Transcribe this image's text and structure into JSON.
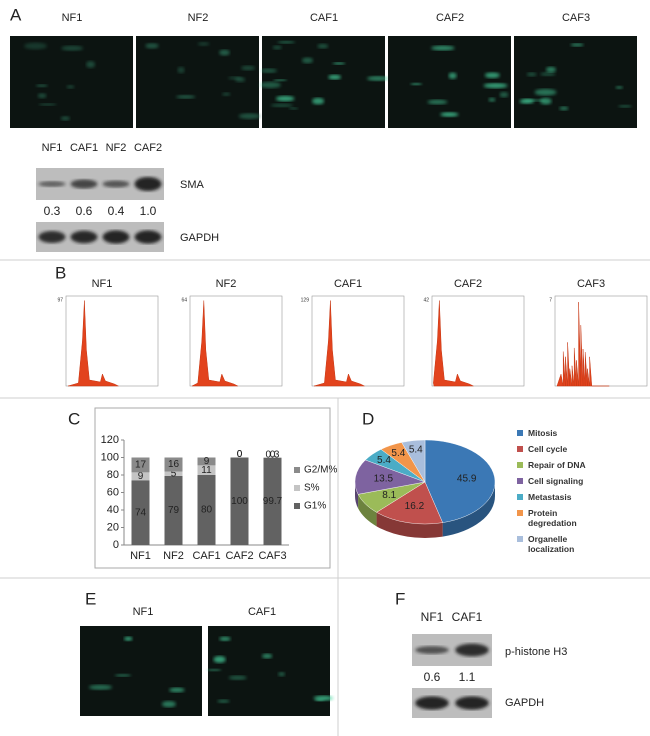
{
  "panel_a": {
    "label": "A",
    "image_labels": [
      "NF1",
      "NF2",
      "CAF1",
      "CAF2",
      "CAF3"
    ],
    "blot": {
      "lanes": [
        "NF1",
        "CAF1",
        "NF2",
        "CAF2"
      ],
      "rows": [
        {
          "name": "SMA",
          "quantities": [
            "0.3",
            "0.6",
            "0.4",
            "1.0"
          ]
        },
        {
          "name": "GAPDH"
        }
      ]
    }
  },
  "panel_b": {
    "label": "B",
    "histograms": [
      {
        "name": "NF1",
        "ymax": "97"
      },
      {
        "name": "NF2",
        "ymax": "64"
      },
      {
        "name": "CAF1",
        "ymax": "129"
      },
      {
        "name": "CAF2",
        "ymax": "42"
      },
      {
        "name": "CAF3",
        "ymax": "7"
      }
    ],
    "xmax": "1023"
  },
  "chart_data": [
    {
      "type": "bar",
      "stacked": true,
      "panel_label": "C",
      "categories": [
        "NF1",
        "NF2",
        "CAF1",
        "CAF2",
        "CAF3"
      ],
      "series": [
        {
          "name": "G2/M%",
          "color": "#8a8a8a",
          "values": [
            17,
            16,
            9,
            0,
            0.3
          ]
        },
        {
          "name": "S%",
          "color": "#c4c4c4",
          "values": [
            9,
            5,
            11,
            0,
            0
          ]
        },
        {
          "name": "G1%",
          "color": "#626262",
          "values": [
            74,
            79,
            80,
            100,
            99.7
          ]
        }
      ],
      "ylim": [
        0,
        120
      ],
      "yticks": [
        0,
        20,
        40,
        60,
        80,
        100,
        120
      ],
      "legend": "right"
    },
    {
      "type": "pie",
      "panel_label": "D",
      "categories": [
        "Mitosis",
        "Cell cycle",
        "Repair of DNA",
        "Cell signaling",
        "Metastasis",
        "Protein degredation",
        "Organelle localization"
      ],
      "values": [
        45.9,
        16.2,
        8.1,
        13.5,
        5.4,
        5.4,
        5.4
      ],
      "colors": [
        "#3b78b5",
        "#c0504d",
        "#9bbb59",
        "#7e63a0",
        "#4bacc6",
        "#f2954a",
        "#a9bedc"
      ],
      "legend": "right"
    }
  ],
  "panel_e": {
    "label": "E",
    "image_labels": [
      "NF1",
      "CAF1"
    ]
  },
  "panel_f": {
    "label": "F",
    "blot": {
      "lanes": [
        "NF1",
        "CAF1"
      ],
      "rows": [
        {
          "name": "p-histone H3",
          "quantities": [
            "0.6",
            "1.1"
          ]
        },
        {
          "name": "GAPDH"
        }
      ]
    }
  }
}
